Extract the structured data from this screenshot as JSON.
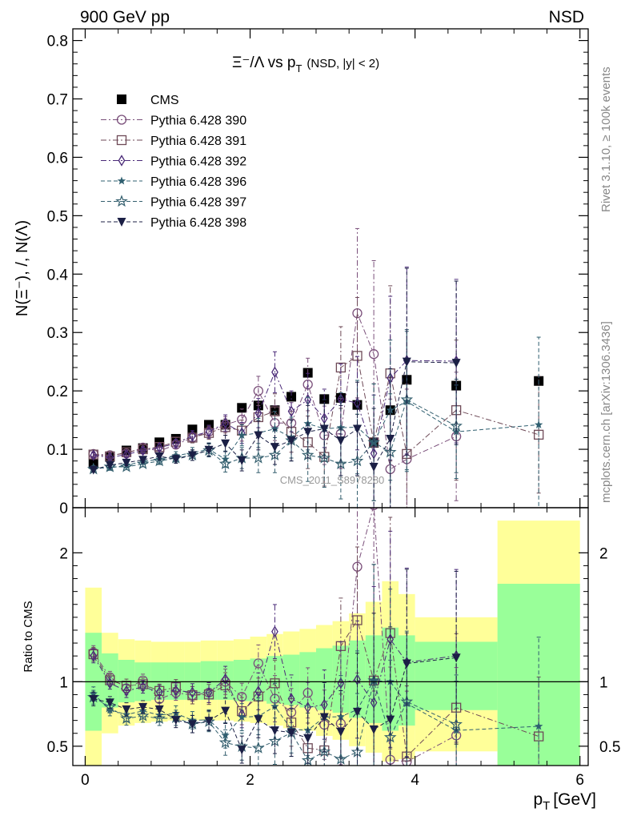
{
  "header": {
    "left": "900 GeV pp",
    "right": "NSD"
  },
  "side_labels": {
    "rivet": "Rivet 3.1.10, ≥ 100k events",
    "mcplots": "mcplots.cern.ch [arXiv:1306.3436]"
  },
  "plot_title": {
    "main": "Ξ⁻/Λ  vs p",
    "sub": "T",
    "suffix": "(NSD, |y| < 2)"
  },
  "watermark": "CMS_2011_S8978280",
  "colors": {
    "band_yellow": "#ffff99",
    "band_green": "#99ff99",
    "cms": "#000000",
    "p390": "#7a4f7a",
    "p391": "#6e4a57",
    "p392": "#4a2a78",
    "p396": "#2f5f70",
    "p397": "#345f6e",
    "p398": "#1b1f45"
  },
  "chart_data": [
    {
      "panel": "main",
      "type": "scatter",
      "ylabel": "N(Ξ⁻), /, N(Λ)",
      "xlabel": "p_T [GeV]",
      "xlim": [
        -0.15,
        6.1
      ],
      "ylim": [
        0,
        0.82
      ],
      "yticks": [
        0,
        0.1,
        0.2,
        0.3,
        0.4,
        0.5,
        0.6,
        0.7,
        0.8
      ],
      "ytick_labels": [
        "0",
        "0.1",
        "0.2",
        "0.3",
        "0.4",
        "0.5",
        "0.6",
        "0.7",
        "0.8"
      ],
      "legend_position": "top-left",
      "series": [
        {
          "name": "CMS",
          "key": "cms",
          "marker": "square-filled",
          "line": "none",
          "x": [
            0.1,
            0.3,
            0.5,
            0.7,
            0.9,
            1.1,
            1.3,
            1.5,
            1.7,
            1.9,
            2.1,
            2.3,
            2.5,
            2.7,
            2.9,
            3.1,
            3.3,
            3.5,
            3.7,
            3.9,
            4.5,
            5.5
          ],
          "y": [
            0.075,
            0.087,
            0.098,
            0.102,
            0.112,
            0.118,
            0.134,
            0.142,
            0.142,
            0.171,
            0.175,
            0.167,
            0.19,
            0.231,
            0.186,
            0.188,
            0.176,
            0.111,
            0.167,
            0.219,
            0.209,
            0.217
          ]
        },
        {
          "name": "Pythia 6.428 390",
          "key": "p390",
          "marker": "circle-open",
          "line": "dashdot",
          "x": [
            0.1,
            0.3,
            0.5,
            0.7,
            0.9,
            1.1,
            1.3,
            1.5,
            1.7,
            1.9,
            2.1,
            2.3,
            2.5,
            2.7,
            2.9,
            3.1,
            3.3,
            3.5,
            3.7,
            3.9,
            4.5
          ],
          "y": [
            0.092,
            0.09,
            0.093,
            0.103,
            0.097,
            0.108,
            0.12,
            0.13,
            0.142,
            0.151,
            0.2,
            0.145,
            0.145,
            0.211,
            0.124,
            0.127,
            0.333,
            0.263,
            0.066,
            0.083,
            0.122
          ],
          "err": [
            0.004,
            0.004,
            0.005,
            0.005,
            0.006,
            0.007,
            0.009,
            0.011,
            0.014,
            0.018,
            0.025,
            0.03,
            0.035,
            0.045,
            0.05,
            0.06,
            0.145,
            0.16,
            0.12,
            0.12,
            0.11
          ]
        },
        {
          "name": "Pythia 6.428 391",
          "key": "p391",
          "marker": "square-open",
          "line": "dashdot",
          "x": [
            0.1,
            0.3,
            0.5,
            0.7,
            0.9,
            1.1,
            1.3,
            1.5,
            1.7,
            1.9,
            2.1,
            2.3,
            2.5,
            2.7,
            2.9,
            3.1,
            3.3,
            3.5,
            3.7,
            3.9,
            4.5,
            5.5
          ],
          "y": [
            0.091,
            0.088,
            0.095,
            0.1,
            0.104,
            0.113,
            0.12,
            0.128,
            0.138,
            0.132,
            0.155,
            0.165,
            0.13,
            0.112,
            0.087,
            0.24,
            0.26,
            0.112,
            0.23,
            0.092,
            0.167,
            0.125
          ],
          "err": [
            0.004,
            0.004,
            0.005,
            0.005,
            0.006,
            0.007,
            0.009,
            0.011,
            0.014,
            0.018,
            0.025,
            0.03,
            0.035,
            0.045,
            0.05,
            0.07,
            0.1,
            0.1,
            0.15,
            0.12,
            0.12,
            0.1
          ]
        },
        {
          "name": "Pythia 6.428 392",
          "key": "p392",
          "marker": "diamond-open",
          "line": "dashdot",
          "x": [
            0.1,
            0.3,
            0.5,
            0.7,
            0.9,
            1.1,
            1.3,
            1.5,
            1.7,
            1.9,
            2.1,
            2.3,
            2.5,
            2.7,
            2.9,
            3.1,
            3.3,
            3.5,
            3.7,
            3.9,
            4.5
          ],
          "y": [
            0.09,
            0.086,
            0.091,
            0.098,
            0.103,
            0.11,
            0.123,
            0.13,
            0.145,
            0.128,
            0.162,
            0.232,
            0.165,
            0.185,
            0.153,
            0.186,
            0.179,
            0.093,
            0.222,
            0.252,
            0.251
          ],
          "err": [
            0.004,
            0.004,
            0.005,
            0.005,
            0.006,
            0.007,
            0.009,
            0.011,
            0.014,
            0.018,
            0.025,
            0.035,
            0.035,
            0.045,
            0.05,
            0.06,
            0.08,
            0.1,
            0.14,
            0.16,
            0.14
          ]
        },
        {
          "name": "Pythia 6.428 396",
          "key": "p396",
          "marker": "star-filled",
          "line": "dashed",
          "x": [
            0.1,
            0.3,
            0.5,
            0.7,
            0.9,
            1.1,
            1.3,
            1.5,
            1.7,
            1.9,
            2.1,
            2.3,
            2.5,
            2.7,
            2.9,
            3.1,
            3.3,
            3.5,
            3.7,
            3.9,
            4.5,
            5.5
          ],
          "y": [
            0.068,
            0.068,
            0.073,
            0.079,
            0.083,
            0.089,
            0.094,
            0.1,
            0.083,
            0.124,
            0.128,
            0.135,
            0.12,
            0.144,
            0.135,
            0.137,
            0.138,
            0.112,
            0.167,
            0.182,
            0.13,
            0.142
          ],
          "err": [
            0.004,
            0.004,
            0.005,
            0.005,
            0.006,
            0.007,
            0.009,
            0.011,
            0.014,
            0.018,
            0.025,
            0.03,
            0.035,
            0.045,
            0.05,
            0.06,
            0.08,
            0.1,
            0.12,
            0.12,
            0.08,
            0.15
          ]
        },
        {
          "name": "Pythia 6.428 397",
          "key": "p397",
          "marker": "star-open",
          "line": "dashed",
          "x": [
            0.1,
            0.3,
            0.5,
            0.7,
            0.9,
            1.1,
            1.3,
            1.5,
            1.7,
            1.9,
            2.1,
            2.3,
            2.5,
            2.7,
            2.9,
            3.1,
            3.3,
            3.5,
            3.7,
            3.9,
            4.5
          ],
          "y": [
            0.066,
            0.07,
            0.07,
            0.075,
            0.08,
            0.085,
            0.09,
            0.098,
            0.075,
            0.085,
            0.085,
            0.09,
            0.115,
            0.09,
            0.085,
            0.075,
            0.08,
            0.112,
            0.095,
            0.185,
            0.14
          ],
          "err": [
            0.004,
            0.004,
            0.005,
            0.005,
            0.006,
            0.007,
            0.009,
            0.011,
            0.014,
            0.018,
            0.025,
            0.03,
            0.035,
            0.045,
            0.05,
            0.06,
            0.08,
            0.1,
            0.1,
            0.12,
            0.08
          ]
        },
        {
          "name": "Pythia 6.428 398",
          "key": "p398",
          "marker": "triangle-down-filled",
          "line": "dashed",
          "x": [
            0.1,
            0.3,
            0.5,
            0.7,
            0.9,
            1.1,
            1.3,
            1.5,
            1.7,
            1.9,
            2.1,
            2.3,
            2.5,
            2.7,
            2.9,
            3.1,
            3.3,
            3.5,
            3.7,
            3.9,
            4.5
          ],
          "y": [
            0.065,
            0.073,
            0.077,
            0.082,
            0.088,
            0.083,
            0.09,
            0.099,
            0.11,
            0.081,
            0.124,
            0.104,
            0.115,
            0.13,
            0.135,
            0.115,
            0.135,
            0.07,
            0.118,
            0.25,
            0.248
          ],
          "err": [
            0.004,
            0.004,
            0.005,
            0.005,
            0.006,
            0.007,
            0.009,
            0.011,
            0.014,
            0.018,
            0.025,
            0.03,
            0.035,
            0.045,
            0.05,
            0.06,
            0.08,
            0.1,
            0.12,
            0.16,
            0.14
          ]
        }
      ]
    },
    {
      "panel": "ratio",
      "type": "scatter",
      "ylabel": "Ratio to CMS",
      "xlabel": "p_T [GeV]",
      "xlim": [
        -0.15,
        6.1
      ],
      "ylim": [
        0.35,
        2.35
      ],
      "yticks": [
        0.5,
        1,
        2
      ],
      "ytick_labels": [
        "0.5",
        "1",
        "2"
      ],
      "xticks": [
        0,
        2,
        4,
        6
      ],
      "xtick_labels": [
        "0",
        "2",
        "4",
        "6"
      ],
      "reference_line": 1,
      "bands": [
        {
          "x0": 0.0,
          "x1": 0.2,
          "green": [
            0.62,
            1.38
          ],
          "yellow": [
            0.35,
            1.73
          ]
        },
        {
          "x0": 0.2,
          "x1": 0.4,
          "green": [
            0.8,
            1.22
          ],
          "yellow": [
            0.6,
            1.38
          ]
        },
        {
          "x0": 0.4,
          "x1": 0.6,
          "green": [
            0.84,
            1.17
          ],
          "yellow": [
            0.66,
            1.33
          ]
        },
        {
          "x0": 0.6,
          "x1": 0.8,
          "green": [
            0.85,
            1.15
          ],
          "yellow": [
            0.68,
            1.32
          ]
        },
        {
          "x0": 0.8,
          "x1": 1.0,
          "green": [
            0.86,
            1.15
          ],
          "yellow": [
            0.69,
            1.31
          ]
        },
        {
          "x0": 1.0,
          "x1": 1.2,
          "green": [
            0.86,
            1.15
          ],
          "yellow": [
            0.7,
            1.31
          ]
        },
        {
          "x0": 1.2,
          "x1": 1.4,
          "green": [
            0.86,
            1.15
          ],
          "yellow": [
            0.7,
            1.31
          ]
        },
        {
          "x0": 1.4,
          "x1": 1.6,
          "green": [
            0.86,
            1.16
          ],
          "yellow": [
            0.7,
            1.32
          ]
        },
        {
          "x0": 1.6,
          "x1": 1.8,
          "green": [
            0.86,
            1.16
          ],
          "yellow": [
            0.7,
            1.32
          ]
        },
        {
          "x0": 1.8,
          "x1": 2.0,
          "green": [
            0.85,
            1.17
          ],
          "yellow": [
            0.69,
            1.33
          ]
        },
        {
          "x0": 2.0,
          "x1": 2.2,
          "green": [
            0.85,
            1.18
          ],
          "yellow": [
            0.68,
            1.35
          ]
        },
        {
          "x0": 2.2,
          "x1": 2.4,
          "green": [
            0.83,
            1.2
          ],
          "yellow": [
            0.66,
            1.37
          ]
        },
        {
          "x0": 2.4,
          "x1": 2.6,
          "green": [
            0.82,
            1.21
          ],
          "yellow": [
            0.64,
            1.39
          ]
        },
        {
          "x0": 2.6,
          "x1": 2.8,
          "green": [
            0.8,
            1.23
          ],
          "yellow": [
            0.62,
            1.41
          ]
        },
        {
          "x0": 2.8,
          "x1": 3.0,
          "green": [
            0.78,
            1.26
          ],
          "yellow": [
            0.58,
            1.44
          ]
        },
        {
          "x0": 3.0,
          "x1": 3.2,
          "green": [
            0.76,
            1.28
          ],
          "yellow": [
            0.55,
            1.47
          ]
        },
        {
          "x0": 3.2,
          "x1": 3.4,
          "green": [
            0.72,
            1.32
          ],
          "yellow": [
            0.5,
            1.53
          ]
        },
        {
          "x0": 3.4,
          "x1": 3.6,
          "green": [
            0.68,
            1.36
          ],
          "yellow": [
            0.45,
            1.62
          ]
        },
        {
          "x0": 3.6,
          "x1": 3.8,
          "green": [
            0.62,
            1.42
          ],
          "yellow": [
            0.38,
            1.78
          ]
        },
        {
          "x0": 3.8,
          "x1": 4.0,
          "green": [
            0.66,
            1.36
          ],
          "yellow": [
            0.4,
            1.68
          ]
        },
        {
          "x0": 4.0,
          "x1": 5.0,
          "green": [
            0.78,
            1.31
          ],
          "yellow": [
            0.46,
            1.5
          ]
        },
        {
          "x0": 5.0,
          "x1": 6.0,
          "green": [
            0.35,
            1.76
          ],
          "yellow": [
            0.35,
            2.25
          ]
        }
      ]
    }
  ]
}
